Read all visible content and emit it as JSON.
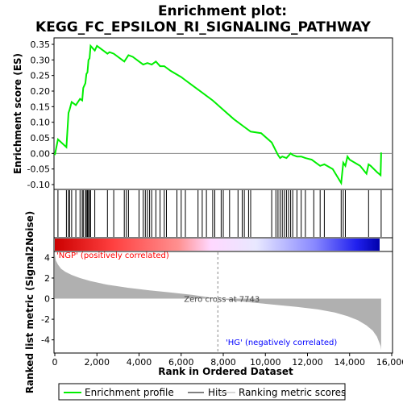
{
  "title": "Enrichment plot:",
  "subtitle": "KEGG_FC_EPSILON_RI_SIGNALING_PATHWAY",
  "colors": {
    "es_line": "#00ee00",
    "hits": "#000000",
    "metric_fill": "#b0b0b0",
    "zero_line": "#888888",
    "pos_label": "#ff0000",
    "neg_label": "#0000ff"
  },
  "chart_data": [
    {
      "type": "line",
      "name": "enrichment-profile",
      "ylabel": "Enrichment score (ES)",
      "xlim": [
        0,
        16000
      ],
      "ylim": [
        -0.1,
        0.35
      ],
      "yticks": [
        "0.35",
        "0.30",
        "0.25",
        "0.20",
        "0.15",
        "0.10",
        "0.05",
        "0.00",
        "-0.05",
        "-0.10"
      ],
      "ytick_values": [
        0.35,
        0.3,
        0.25,
        0.2,
        0.15,
        0.1,
        0.05,
        0.0,
        -0.05,
        -0.1
      ],
      "x": [
        0,
        150,
        550,
        650,
        700,
        800,
        1000,
        1200,
        1300,
        1350,
        1450,
        1500,
        1550,
        1600,
        1650,
        1700,
        1900,
        2000,
        2500,
        2600,
        2800,
        3300,
        3500,
        3700,
        4000,
        4200,
        4400,
        4600,
        4800,
        5000,
        5200,
        5500,
        6000,
        6200,
        6500,
        7000,
        7500,
        8000,
        8500,
        9000,
        9300,
        9800,
        10300,
        10600,
        10700,
        10800,
        11000,
        11200,
        11300,
        11500,
        11700,
        11900,
        12200,
        12600,
        12800,
        13200,
        13600,
        13700,
        13800,
        13900,
        14000,
        14500,
        14800,
        14900,
        15000,
        15300,
        15470,
        15500
      ],
      "y": [
        -0.005,
        0.045,
        0.02,
        0.13,
        0.14,
        0.165,
        0.155,
        0.175,
        0.17,
        0.21,
        0.225,
        0.255,
        0.26,
        0.3,
        0.305,
        0.345,
        0.33,
        0.345,
        0.32,
        0.325,
        0.32,
        0.295,
        0.315,
        0.31,
        0.295,
        0.285,
        0.29,
        0.285,
        0.295,
        0.28,
        0.28,
        0.265,
        0.245,
        0.235,
        0.22,
        0.195,
        0.17,
        0.14,
        0.11,
        0.085,
        0.07,
        0.065,
        0.035,
        -0.005,
        -0.015,
        -0.01,
        -0.015,
        0.0,
        -0.005,
        -0.01,
        -0.01,
        -0.015,
        -0.02,
        -0.04,
        -0.035,
        -0.05,
        -0.095,
        -0.03,
        -0.04,
        -0.01,
        -0.02,
        -0.04,
        -0.065,
        -0.035,
        -0.04,
        -0.06,
        -0.07,
        0.003
      ]
    },
    {
      "type": "bar",
      "name": "hits",
      "x": [
        150,
        550,
        650,
        700,
        800,
        1000,
        1200,
        1300,
        1350,
        1450,
        1500,
        1550,
        1600,
        1650,
        1700,
        1900,
        2500,
        2800,
        3300,
        3400,
        3500,
        4000,
        4200,
        4300,
        4400,
        4500,
        4600,
        4800,
        5000,
        5200,
        5300,
        5800,
        6000,
        6200,
        6800,
        7000,
        7200,
        7500,
        7600,
        7900,
        8000,
        8300,
        8700,
        8900,
        9000,
        9200,
        9300,
        10300,
        10500,
        10600,
        10700,
        10800,
        10900,
        11000,
        11100,
        11200,
        11300,
        11500,
        11700,
        11900,
        12300,
        12600,
        12800,
        13600,
        13700,
        13800,
        14900,
        15500
      ]
    },
    {
      "type": "area",
      "name": "ranked-list-metric",
      "ylabel": "Ranked list metric (Signal2Noise)",
      "xlabel": "Rank in Ordered Dataset",
      "xlim": [
        0,
        16000
      ],
      "ylim": [
        -5.2,
        4.5
      ],
      "yticks": [
        "4",
        "2",
        "0",
        "-2",
        "-4"
      ],
      "ytick_values": [
        4,
        2,
        0,
        -2,
        -4
      ],
      "xticks": [
        "0",
        "2,000",
        "4,000",
        "6,000",
        "8,000",
        "10,000",
        "12,000",
        "14,000",
        "16,000"
      ],
      "xtick_values": [
        0,
        2000,
        4000,
        6000,
        8000,
        10000,
        12000,
        14000,
        16000
      ],
      "x": [
        0,
        50,
        150,
        300,
        500,
        800,
        1200,
        1700,
        2500,
        3500,
        4500,
        5500,
        6500,
        7743,
        8500,
        9500,
        10500,
        11500,
        12500,
        13300,
        13900,
        14400,
        14800,
        15100,
        15300,
        15470,
        15500
      ],
      "y": [
        4.3,
        3.7,
        3.3,
        2.9,
        2.6,
        2.3,
        2.0,
        1.7,
        1.35,
        1.05,
        0.8,
        0.6,
        0.38,
        0.0,
        -0.2,
        -0.4,
        -0.6,
        -0.8,
        -1.05,
        -1.35,
        -1.7,
        -2.1,
        -2.6,
        -3.1,
        -3.7,
        -4.6,
        -5.0
      ],
      "zero_cross_label": "Zero cross at 7743",
      "zero_cross_x": 7743,
      "pos_label": "'NGP' (positively correlated)",
      "neg_label": "'HG' (negatively correlated)"
    }
  ],
  "legend": {
    "items": [
      {
        "label": "Enrichment profile",
        "color": "#00ee00"
      },
      {
        "label": "Hits",
        "color": "#000000"
      },
      {
        "label": "Ranking metric scores",
        "color": "#b0b0b0"
      }
    ]
  }
}
